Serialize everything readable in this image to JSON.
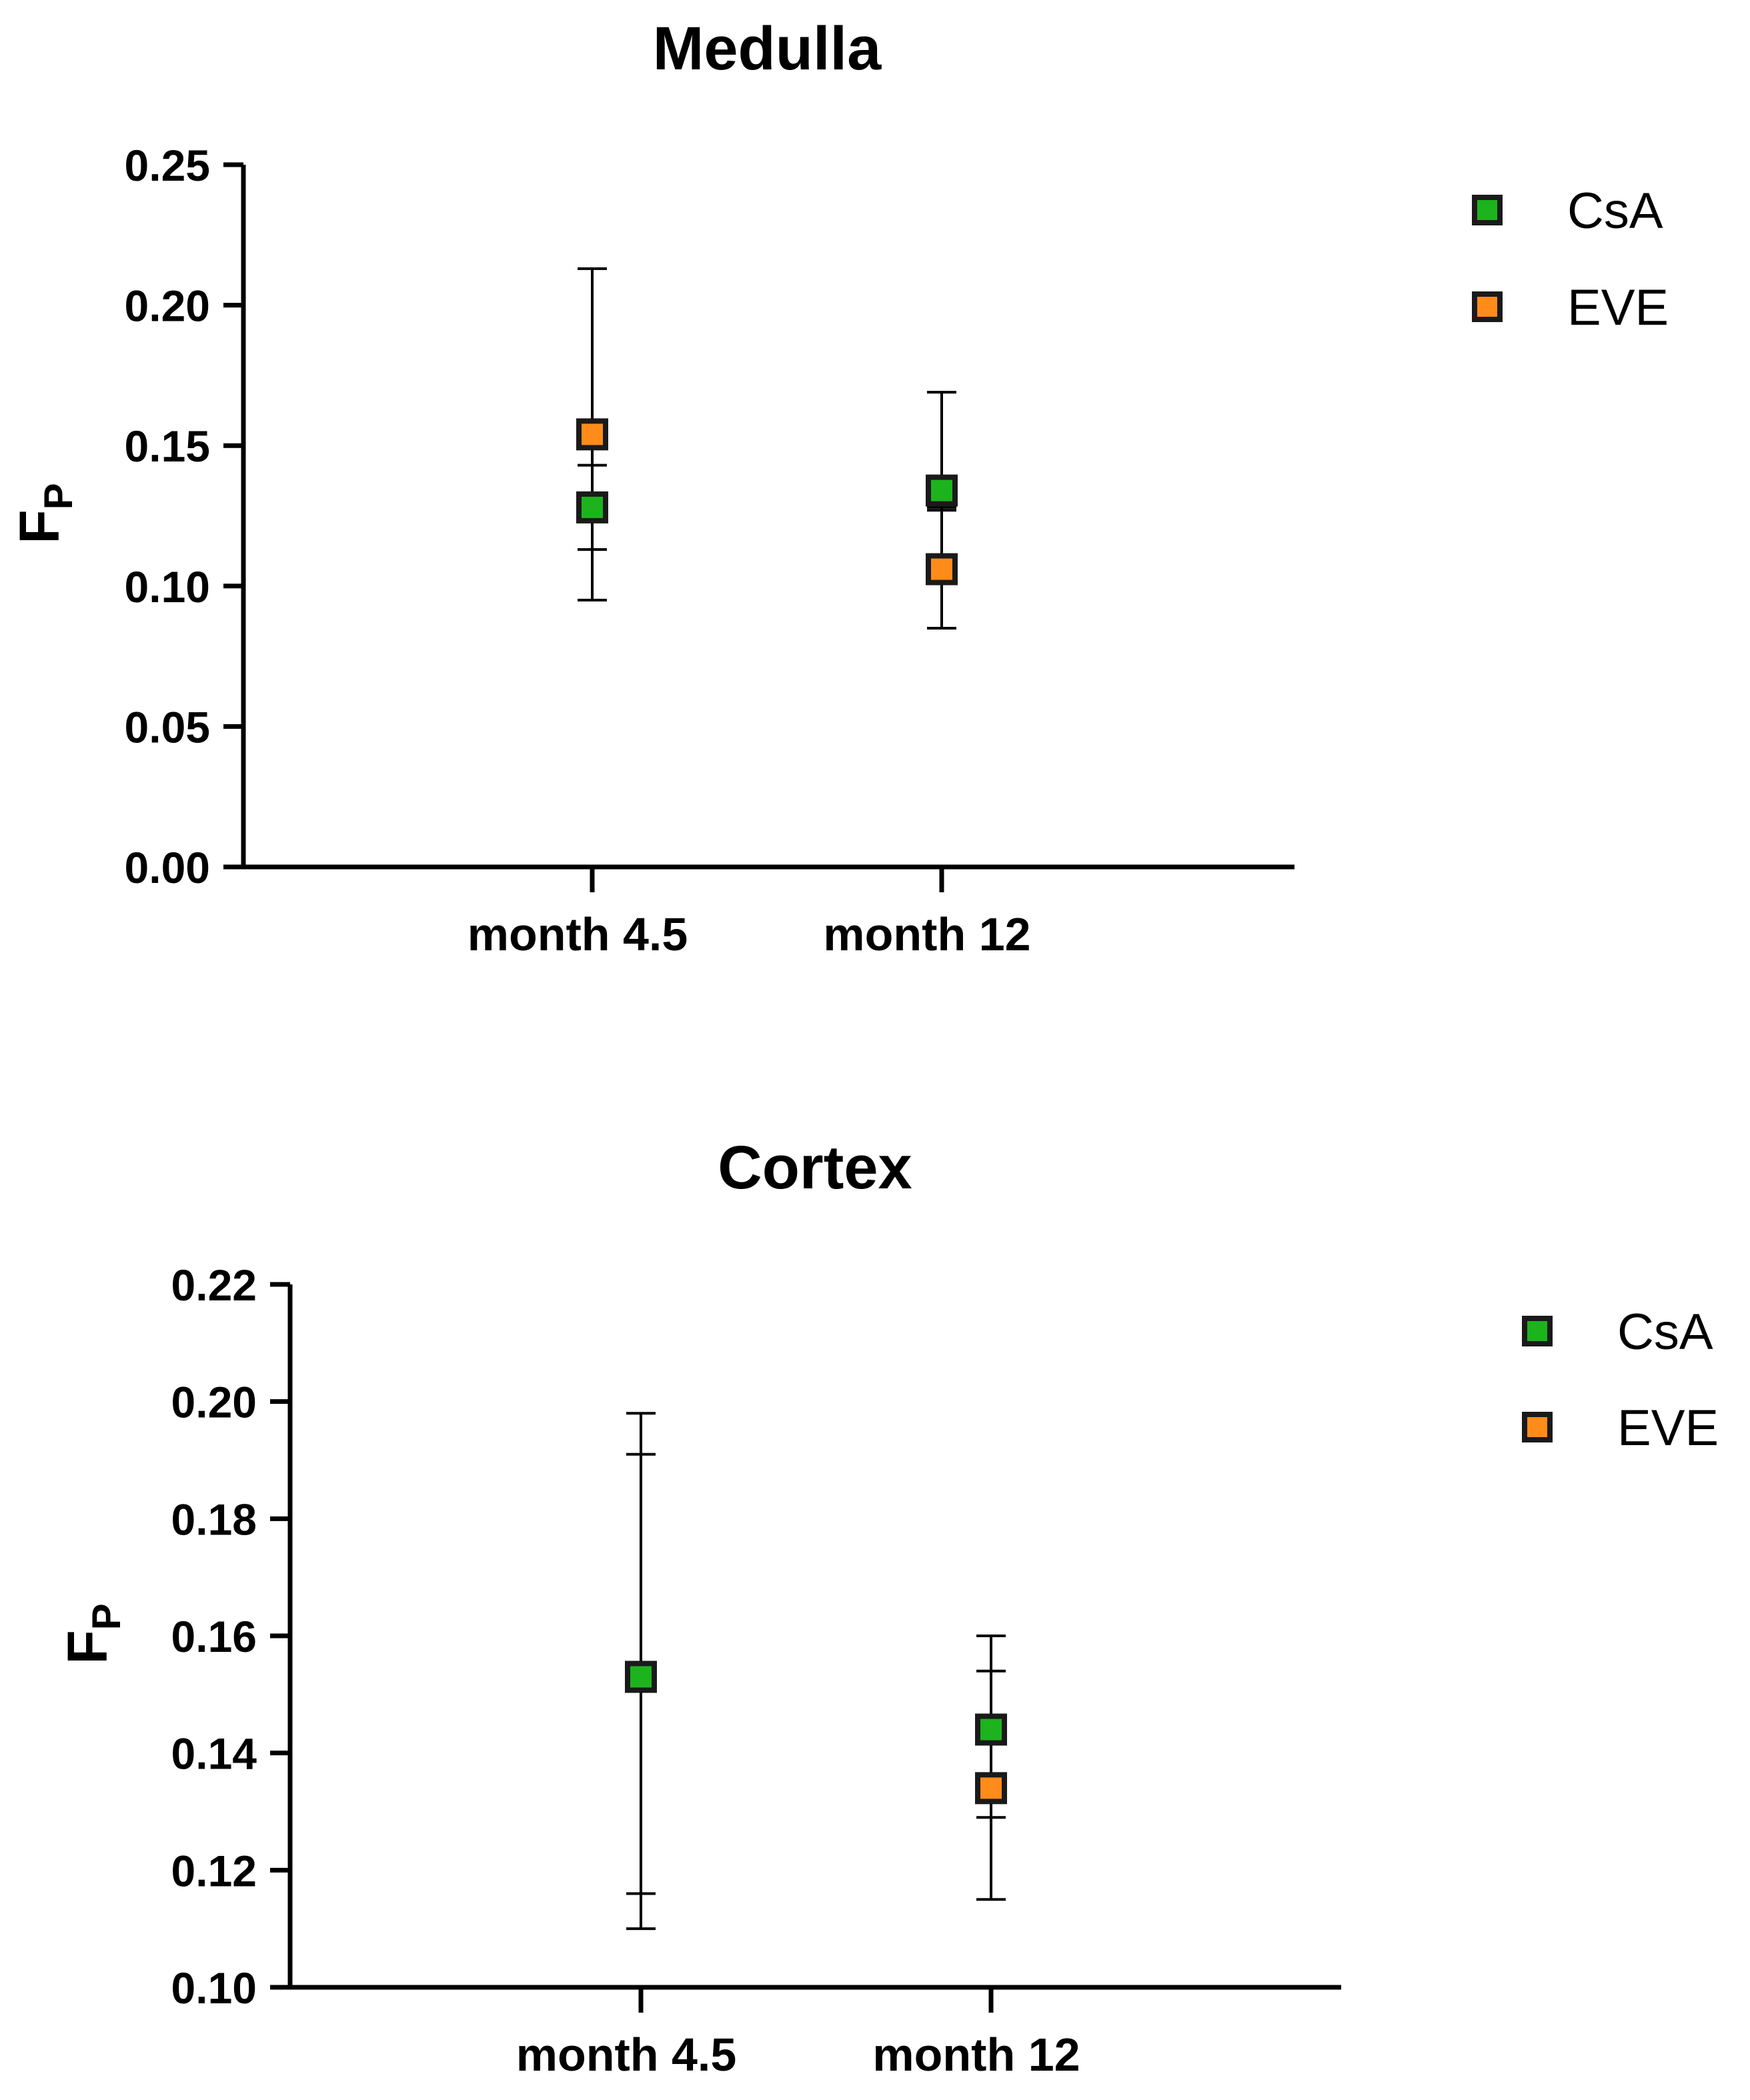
{
  "chart_data": [
    {
      "type": "scatter",
      "title": "Medulla",
      "xlabel": "",
      "ylabel": "F",
      "ylabel_subscript": "P",
      "categories": [
        "month 4.5",
        "month 12"
      ],
      "ylim": [
        0.0,
        0.25
      ],
      "yticks": [
        "0.00",
        "0.05",
        "0.10",
        "0.15",
        "0.20",
        "0.25"
      ],
      "grid": false,
      "legend_position": "top-right",
      "series": [
        {
          "name": "CsA",
          "color": "#1db31d",
          "values": [
            0.128,
            0.134
          ],
          "error_low": [
            0.095,
            0.127
          ],
          "error_high": [
            0.143,
            0.169
          ]
        },
        {
          "name": "EVE",
          "color": "#ff8c1a",
          "values": [
            0.154,
            0.106
          ],
          "error_low": [
            0.113,
            0.085
          ],
          "error_high": [
            0.213,
            0.128
          ]
        }
      ]
    },
    {
      "type": "scatter",
      "title": "Cortex",
      "xlabel": "",
      "ylabel": "F",
      "ylabel_subscript": "P",
      "categories": [
        "month 4.5",
        "month 12"
      ],
      "ylim": [
        0.1,
        0.22
      ],
      "yticks": [
        "0.10",
        "0.12",
        "0.14",
        "0.16",
        "0.18",
        "0.20",
        "0.22"
      ],
      "grid": false,
      "legend_position": "top-right",
      "series": [
        {
          "name": "CsA",
          "color": "#1db31d",
          "values": [
            0.153,
            0.144
          ],
          "error_low": [
            0.11,
            0.129
          ],
          "error_high": [
            0.198,
            0.16
          ]
        },
        {
          "name": "EVE",
          "color": "#ff8c1a",
          "values": [
            0.153,
            0.134
          ],
          "error_low": [
            0.116,
            0.115
          ],
          "error_high": [
            0.191,
            0.154
          ]
        }
      ]
    }
  ]
}
